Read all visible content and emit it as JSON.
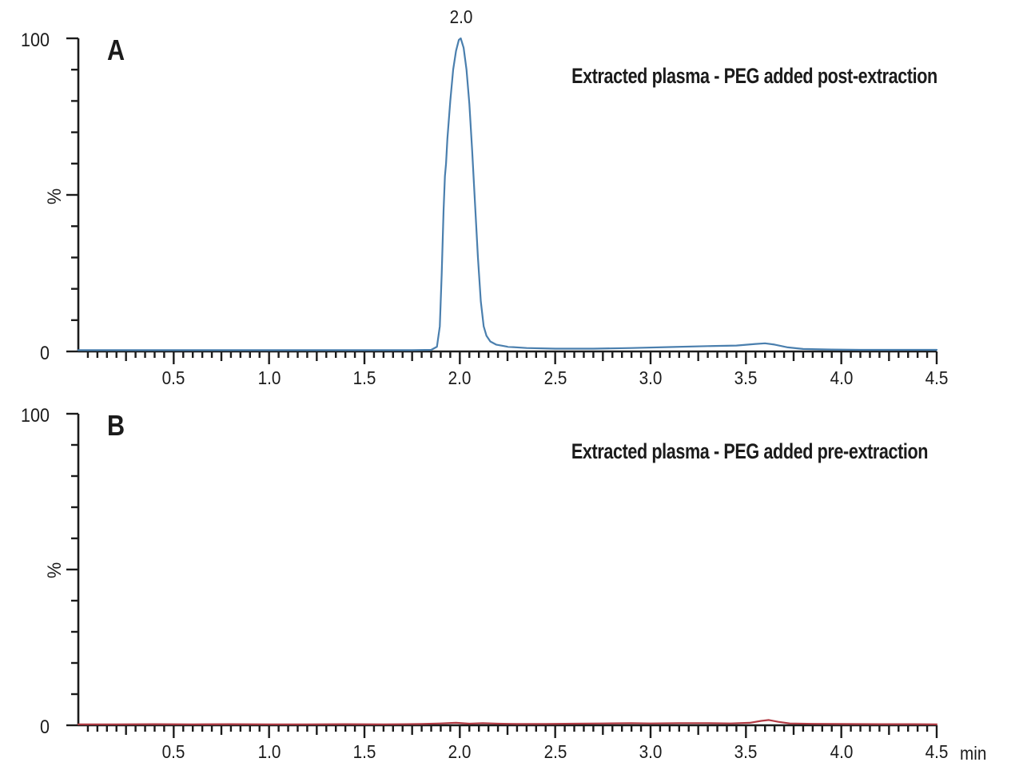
{
  "figure": {
    "background": "#ffffff",
    "axis_color": "#1b1b1b"
  },
  "x_axis": {
    "unit": "min",
    "min": 0,
    "max": 4.5,
    "major_tick_labels": [
      "0.5",
      "1.0",
      "1.5",
      "2.0",
      "2.5",
      "3.0",
      "3.5",
      "4.0",
      "4.5"
    ],
    "minor_tick_interval": 0.05,
    "medium_tick_interval": 0.25,
    "major_tick_interval": 0.5
  },
  "y_axis": {
    "label": "%",
    "top_label": "100",
    "bottom_label": "0",
    "min": 0,
    "max": 100,
    "tick_interval": 10
  },
  "panels": [
    {
      "label": "A",
      "annotation": "Extracted plasma - PEG added post-extraction",
      "peak_label": "2.0",
      "trace_color": "#4a7fae"
    },
    {
      "label": "B",
      "annotation": "Extracted plasma - PEG added pre-extraction",
      "peak_label": "",
      "trace_color": "#b23b44"
    }
  ],
  "chart_data": [
    {
      "type": "line",
      "panel": "A",
      "title": "Extracted plasma - PEG added post-extraction",
      "xlabel": "min",
      "ylabel": "%",
      "xlim": [
        0,
        4.5
      ],
      "ylim": [
        0,
        100
      ],
      "grid": false,
      "legend": "none",
      "peak_annotations": [
        {
          "x": 2.0,
          "y": 100,
          "label": "2.0"
        }
      ],
      "series": [
        {
          "name": "PEG added post-extraction",
          "color": "#4a7fae",
          "points": [
            [
              0,
              0.4
            ],
            [
              0.3,
              0.4
            ],
            [
              0.6,
              0.4
            ],
            [
              0.9,
              0.4
            ],
            [
              1.2,
              0.4
            ],
            [
              1.5,
              0.4
            ],
            [
              1.75,
              0.4
            ],
            [
              1.85,
              0.5
            ],
            [
              1.88,
              1.5
            ],
            [
              1.895,
              8
            ],
            [
              1.905,
              25
            ],
            [
              1.915,
              45
            ],
            [
              1.922,
              56
            ],
            [
              1.928,
              60
            ],
            [
              1.935,
              68
            ],
            [
              1.95,
              80
            ],
            [
              1.965,
              90
            ],
            [
              1.98,
              96
            ],
            [
              1.995,
              99.5
            ],
            [
              2.005,
              100
            ],
            [
              2.02,
              97
            ],
            [
              2.035,
              90
            ],
            [
              2.05,
              79
            ],
            [
              2.065,
              64
            ],
            [
              2.08,
              47
            ],
            [
              2.095,
              30
            ],
            [
              2.11,
              16
            ],
            [
              2.125,
              8
            ],
            [
              2.14,
              5
            ],
            [
              2.16,
              3.2
            ],
            [
              2.19,
              2.2
            ],
            [
              2.25,
              1.5
            ],
            [
              2.35,
              1.1
            ],
            [
              2.5,
              0.9
            ],
            [
              2.7,
              0.9
            ],
            [
              2.9,
              1.1
            ],
            [
              3.1,
              1.4
            ],
            [
              3.3,
              1.7
            ],
            [
              3.45,
              1.9
            ],
            [
              3.55,
              2.4
            ],
            [
              3.6,
              2.6
            ],
            [
              3.65,
              2.2
            ],
            [
              3.72,
              1.3
            ],
            [
              3.8,
              0.8
            ],
            [
              3.95,
              0.6
            ],
            [
              4.1,
              0.5
            ],
            [
              4.3,
              0.5
            ],
            [
              4.5,
              0.5
            ]
          ]
        }
      ]
    },
    {
      "type": "line",
      "panel": "B",
      "title": "Extracted plasma - PEG added pre-extraction",
      "xlabel": "min",
      "ylabel": "%",
      "xlim": [
        0,
        4.5
      ],
      "ylim": [
        0,
        100
      ],
      "grid": false,
      "legend": "none",
      "peak_annotations": [],
      "series": [
        {
          "name": "PEG added pre-extraction",
          "color": "#b23b44",
          "points": [
            [
              0,
              0.3
            ],
            [
              0.2,
              0.3
            ],
            [
              0.4,
              0.35
            ],
            [
              0.6,
              0.3
            ],
            [
              0.8,
              0.35
            ],
            [
              1.0,
              0.3
            ],
            [
              1.2,
              0.3
            ],
            [
              1.4,
              0.35
            ],
            [
              1.6,
              0.3
            ],
            [
              1.8,
              0.4
            ],
            [
              1.9,
              0.6
            ],
            [
              1.98,
              0.8
            ],
            [
              2.05,
              0.5
            ],
            [
              2.12,
              0.7
            ],
            [
              2.2,
              0.5
            ],
            [
              2.3,
              0.4
            ],
            [
              2.45,
              0.4
            ],
            [
              2.6,
              0.5
            ],
            [
              2.75,
              0.6
            ],
            [
              2.9,
              0.7
            ],
            [
              3.0,
              0.6
            ],
            [
              3.15,
              0.7
            ],
            [
              3.3,
              0.7
            ],
            [
              3.42,
              0.6
            ],
            [
              3.52,
              0.8
            ],
            [
              3.58,
              1.4
            ],
            [
              3.62,
              1.7
            ],
            [
              3.67,
              1.1
            ],
            [
              3.73,
              0.6
            ],
            [
              3.85,
              0.45
            ],
            [
              4.0,
              0.4
            ],
            [
              4.2,
              0.35
            ],
            [
              4.35,
              0.35
            ],
            [
              4.5,
              0.3
            ]
          ]
        }
      ]
    }
  ]
}
